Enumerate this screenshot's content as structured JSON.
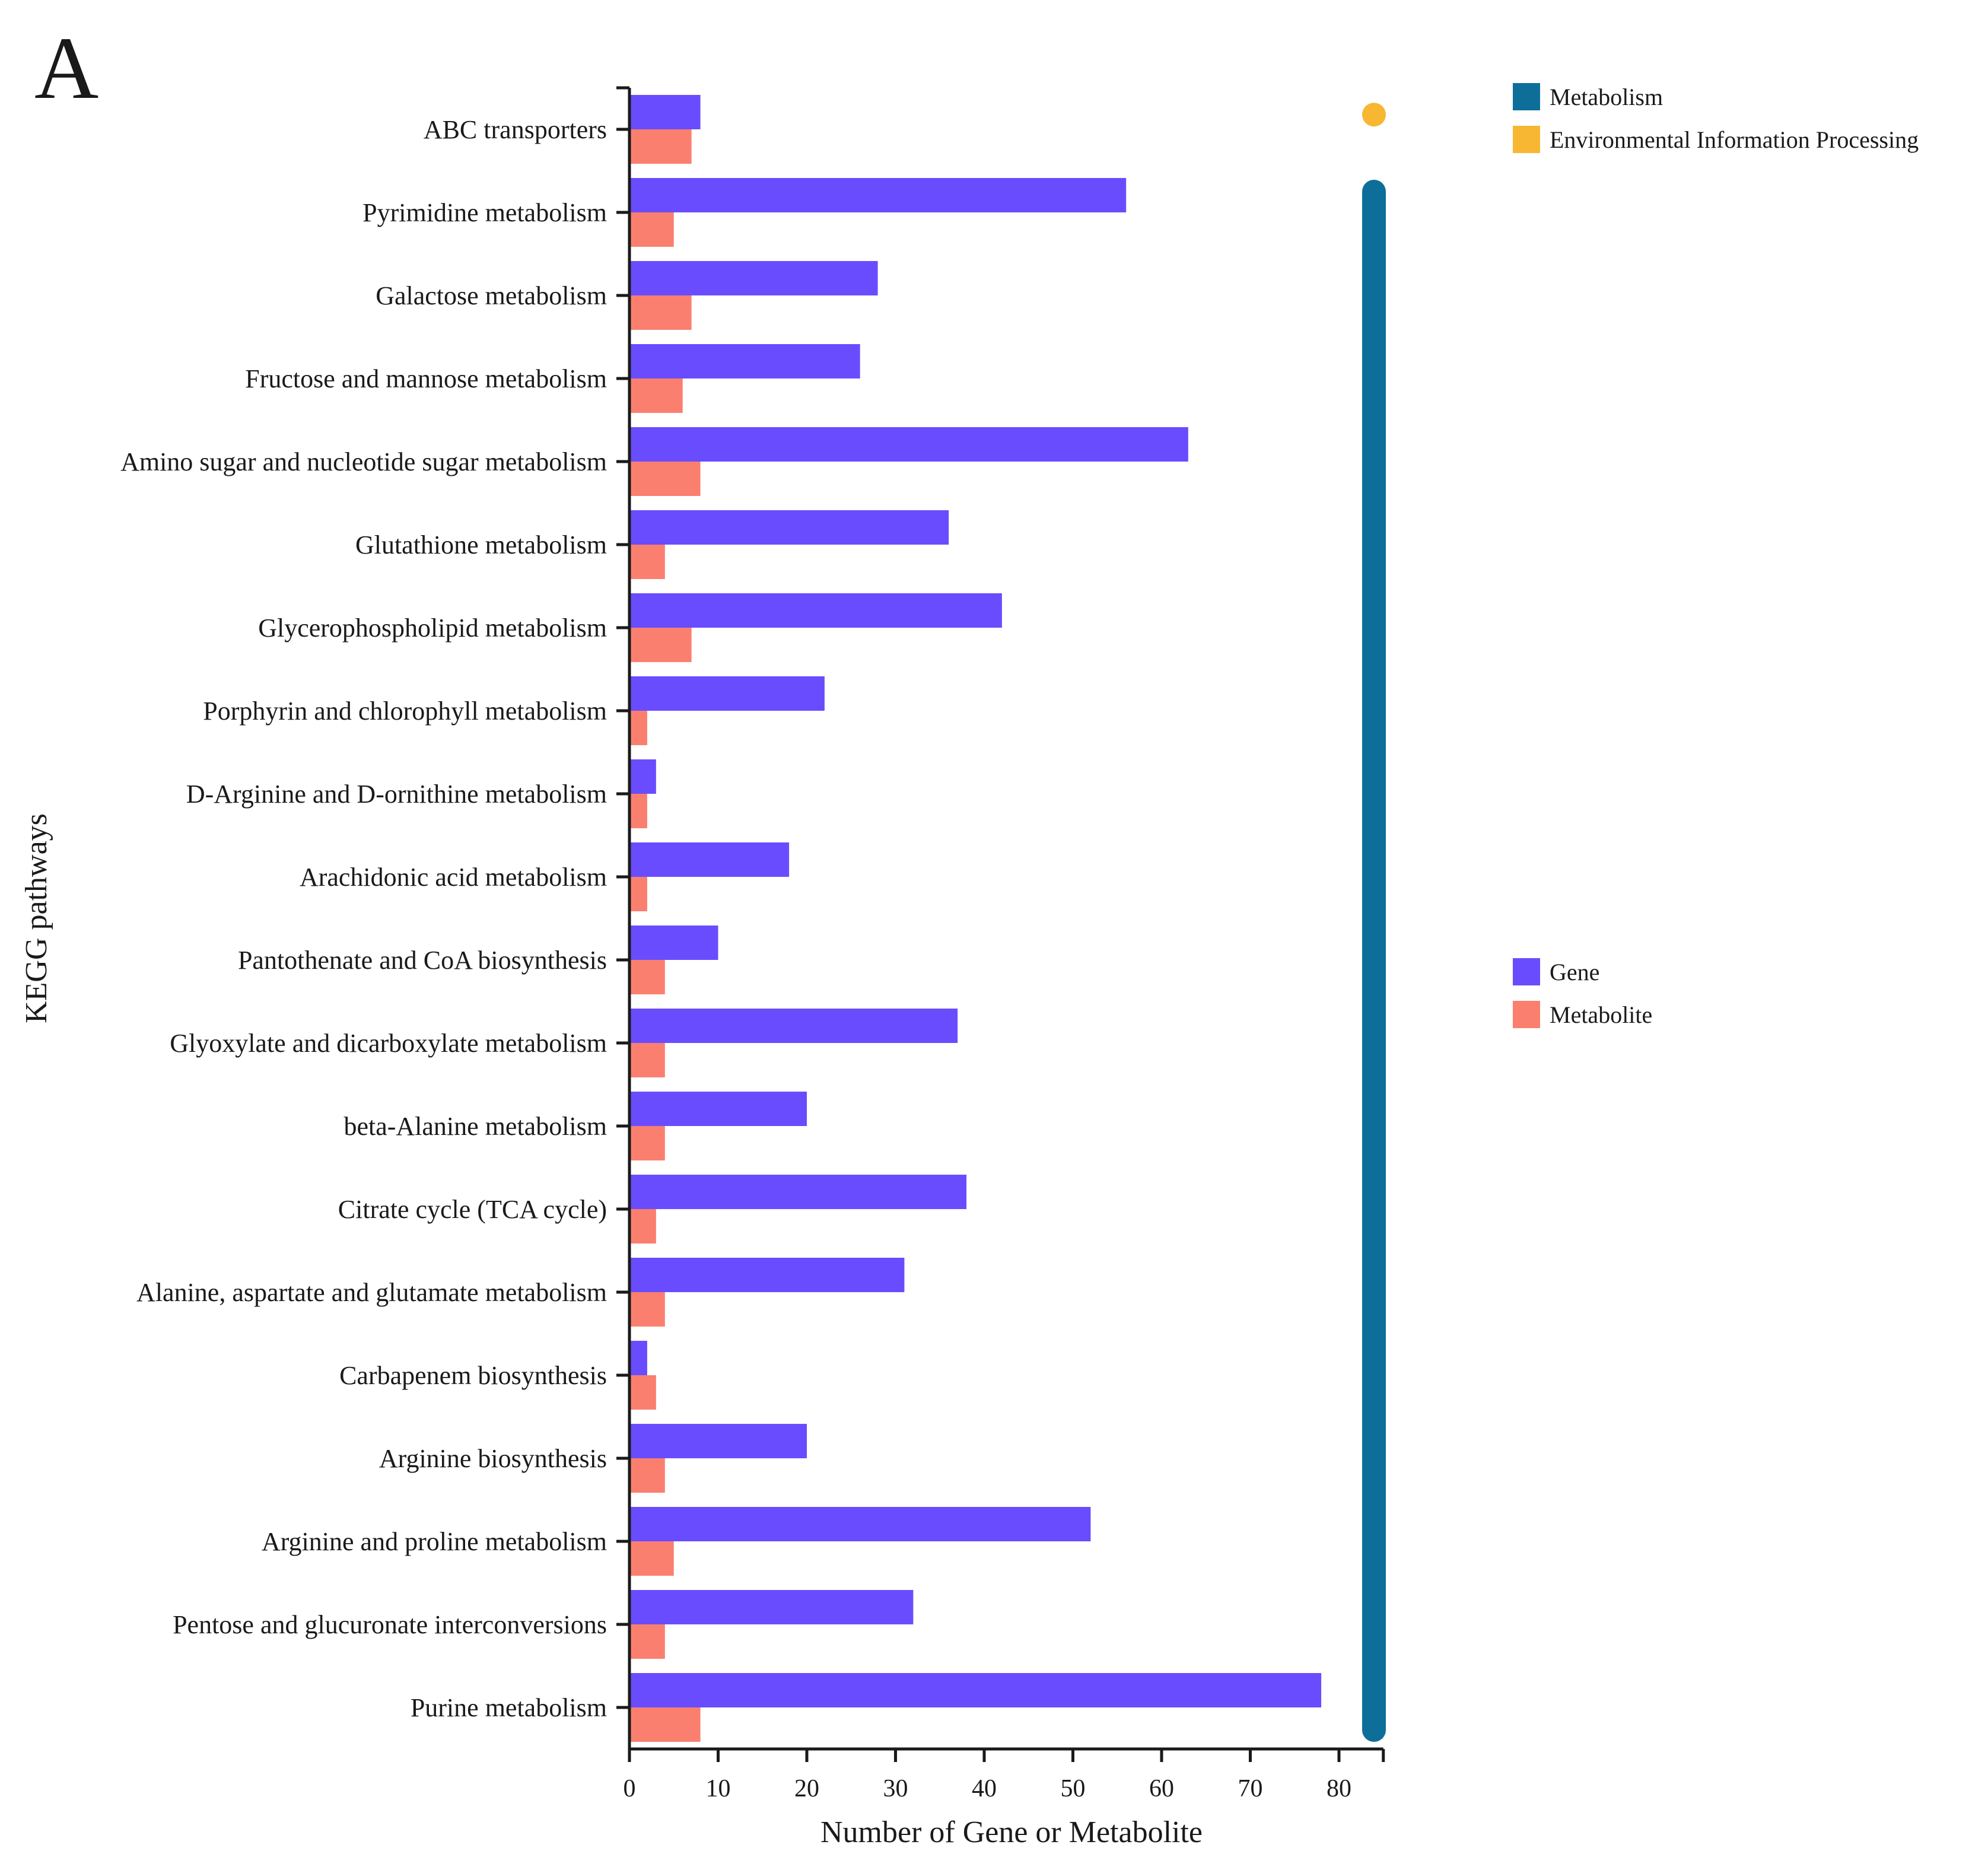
{
  "panel_label": "A",
  "chart_data": {
    "type": "bar",
    "orientation": "horizontal",
    "categories": [
      "ABC transporters",
      "Pyrimidine metabolism",
      "Galactose metabolism",
      "Fructose and mannose metabolism",
      "Amino sugar and nucleotide sugar metabolism",
      "Glutathione metabolism",
      "Glycerophospholipid metabolism",
      "Porphyrin and chlorophyll metabolism",
      "D-Arginine and D-ornithine metabolism",
      "Arachidonic acid metabolism",
      "Pantothenate and CoA biosynthesis",
      "Glyoxylate and dicarboxylate metabolism",
      "beta-Alanine metabolism",
      "Citrate cycle (TCA cycle)",
      "Alanine, aspartate and glutamate metabolism",
      "Carbapenem biosynthesis",
      "Arginine biosynthesis",
      "Arginine and proline metabolism",
      "Pentose and glucuronate interconversions",
      "Purine metabolism"
    ],
    "series": [
      {
        "name": "Gene",
        "color": "#6a4cff",
        "values": [
          8,
          56,
          28,
          26,
          63,
          36,
          42,
          22,
          3,
          18,
          10,
          37,
          20,
          38,
          31,
          2,
          20,
          52,
          32,
          78
        ]
      },
      {
        "name": "Metabolite",
        "color": "#fa7f6f",
        "values": [
          7,
          5,
          7,
          6,
          8,
          4,
          7,
          2,
          2,
          2,
          4,
          4,
          4,
          3,
          4,
          3,
          4,
          5,
          4,
          8
        ]
      }
    ],
    "xlabel": "Number of Gene or Metabolite",
    "ylabel": "KEGG pathways",
    "xlim": [
      0,
      85
    ],
    "xticks": [
      0,
      10,
      20,
      30,
      40,
      50,
      60,
      70,
      80
    ],
    "grid": false,
    "pathway_classes": [
      {
        "name": "Metabolism",
        "color": "#0e6e9a",
        "from_category": 1,
        "to_category": 19
      },
      {
        "name": "Environmental Information Processing",
        "color": "#f7b733",
        "from_category": 0,
        "to_category": 0
      }
    ],
    "legend_class_placement": "top-right",
    "legend_series_placement": "right"
  }
}
